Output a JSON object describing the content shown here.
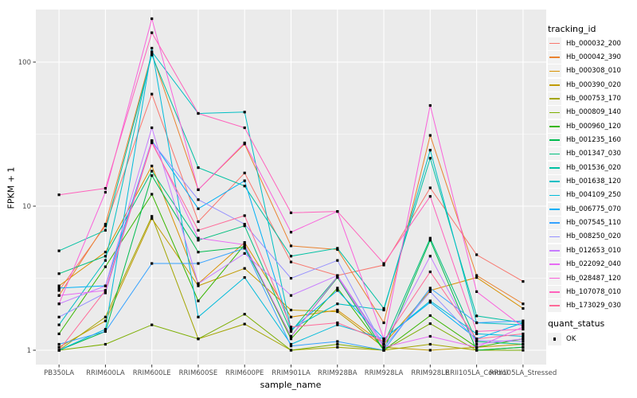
{
  "figure": {
    "background": "#FFFFFF",
    "panel_background": "#EBEBEB",
    "grid_color": "#FFFFFF",
    "tick_label_color": "#4D4D4D",
    "point_color": "#000000",
    "legend_key_background": "#F2F2F2"
  },
  "chart_data": {
    "type": "line",
    "title": "",
    "xlabel": "sample_name",
    "ylabel": "FPKM + 1",
    "y_scale": "log10",
    "y_ticks": [
      1,
      10,
      100
    ],
    "y_minor_ticks": [
      3.1623,
      31.623
    ],
    "ylim": [
      1,
      230
    ],
    "grid": true,
    "legend_position": "right",
    "legend_title": "tracking_id",
    "quant_legend_title": "quant_status",
    "quant_status_label": "OK",
    "quant_status_marker": "black-square",
    "categories": [
      "PB350LA",
      "RRIM600LA",
      "RRIM600LE",
      "RRIM600SE",
      "RRIM600PE",
      "RRIM901LA",
      "RRIM928BA",
      "RRIM928LA",
      "RRIM928LE",
      "RRII105LA_Control",
      "RRII105LA_Stressed"
    ],
    "series": [
      {
        "name": "Hb_000032_200",
        "color": "#F8766D",
        "values": [
          2.6,
          7.3,
          60,
          7.8,
          17,
          4.1,
          3.3,
          3.9,
          13.4,
          4.6,
          3.0
        ]
      },
      {
        "name": "Hb_000042_390",
        "color": "#EA8331",
        "values": [
          2.4,
          7.5,
          115,
          13,
          27,
          5.3,
          5.0,
          1.55,
          31,
          3.3,
          2.1
        ]
      },
      {
        "name": "Hb_000308_010",
        "color": "#D89000",
        "values": [
          2.8,
          4.8,
          19,
          2.9,
          5.6,
          1.7,
          1.9,
          1.1,
          2.6,
          3.2,
          1.95
        ]
      },
      {
        "name": "Hb_000390_020",
        "color": "#C09B00",
        "values": [
          1.05,
          1.6,
          8.2,
          2.8,
          3.7,
          1.9,
          1.85,
          1.05,
          1.0,
          1.05,
          1.1
        ]
      },
      {
        "name": "Hb_000753_170",
        "color": "#A3A500",
        "values": [
          1.0,
          1.7,
          8.5,
          1.2,
          1.52,
          1.0,
          1.05,
          1.0,
          1.1,
          1.0,
          1.05
        ]
      },
      {
        "name": "Hb_000809_140",
        "color": "#7CAE00",
        "values": [
          1.0,
          1.1,
          1.5,
          1.2,
          1.78,
          1.0,
          1.1,
          1.0,
          1.53,
          1.0,
          1.0
        ]
      },
      {
        "name": "Hb_000960_120",
        "color": "#39B600",
        "values": [
          1.3,
          3.8,
          12.1,
          2.2,
          5.4,
          1.2,
          2.7,
          1.0,
          1.74,
          1.05,
          1.2
        ]
      },
      {
        "name": "Hb_001235_160",
        "color": "#00BB4E",
        "values": [
          1.0,
          1.35,
          16.3,
          4.8,
          5.2,
          1.25,
          3.2,
          1.0,
          5.8,
          1.0,
          1.05
        ]
      },
      {
        "name": "Hb_001347_030",
        "color": "#00BF7D",
        "values": [
          3.4,
          4.5,
          17.5,
          5.8,
          7.3,
          1.35,
          3.25,
          1.1,
          6.0,
          1.15,
          1.1
        ]
      },
      {
        "name": "Hb_001536_020",
        "color": "#00C1A3",
        "values": [
          4.9,
          6.8,
          112,
          18.5,
          13.8,
          4.5,
          5.1,
          1.95,
          21.5,
          1.73,
          1.55
        ]
      },
      {
        "name": "Hb_001638_120",
        "color": "#00BFC4",
        "values": [
          1.5,
          4.2,
          118,
          44,
          45,
          1.4,
          2.1,
          1.9,
          24.5,
          1.55,
          1.5
        ]
      },
      {
        "name": "Hb_004109_250",
        "color": "#00BBDA",
        "values": [
          1.0,
          1.4,
          125,
          1.7,
          3.2,
          1.1,
          1.5,
          1.2,
          2.2,
          1.3,
          1.25
        ]
      },
      {
        "name": "Hb_006775_070",
        "color": "#00B0F6",
        "values": [
          2.7,
          2.8,
          28.5,
          9.6,
          15,
          1.38,
          2.6,
          1.2,
          2.15,
          1.2,
          1.55
        ]
      },
      {
        "name": "Hb_007545_110",
        "color": "#35A2FF",
        "values": [
          1.1,
          1.35,
          4.0,
          4.0,
          5.1,
          1.07,
          1.15,
          1.0,
          2.7,
          1.55,
          1.6
        ]
      },
      {
        "name": "Hb_008250_020",
        "color": "#9590FF",
        "values": [
          1.7,
          2.5,
          28,
          11.1,
          7.5,
          3.16,
          4.2,
          1.05,
          2.55,
          1.17,
          1.15
        ]
      },
      {
        "name": "Hb_012653_010",
        "color": "#C77CFF",
        "values": [
          2.1,
          2.8,
          35,
          2.9,
          4.7,
          2.4,
          3.3,
          1.1,
          4.5,
          1.1,
          1.2
        ]
      },
      {
        "name": "Hb_022092_040",
        "color": "#E76BF3",
        "values": [
          2.4,
          2.6,
          28.5,
          6.0,
          5.4,
          1.24,
          3.25,
          1.05,
          1.25,
          1.05,
          1.45
        ]
      },
      {
        "name": "Hb_028487_120",
        "color": "#FA62DB",
        "values": [
          2.1,
          12.5,
          200,
          13,
          27.5,
          6.6,
          9.2,
          1.2,
          50,
          2.55,
          1.45
        ]
      },
      {
        "name": "Hb_107078_010",
        "color": "#FF62BC",
        "values": [
          12,
          13.3,
          160,
          44,
          35,
          9.0,
          9.2,
          4.0,
          11.7,
          1.35,
          1.4
        ]
      },
      {
        "name": "Hb_173029_030",
        "color": "#FF6A98",
        "values": [
          1.0,
          2.6,
          27.5,
          6.8,
          8.6,
          1.45,
          1.55,
          1.15,
          3.5,
          1.2,
          1.3
        ]
      }
    ]
  }
}
